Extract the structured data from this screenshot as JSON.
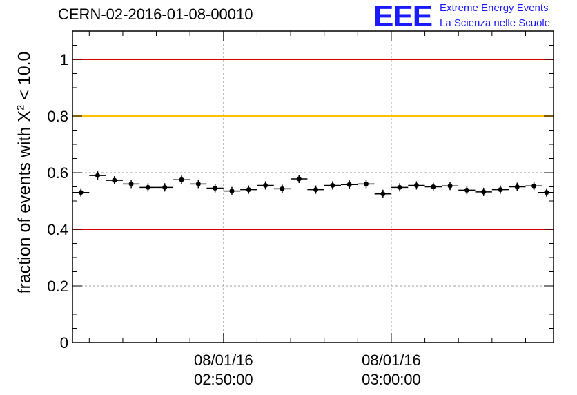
{
  "header": {
    "title": "CERN-02-2016-01-08-00010",
    "logo_text": "EEE",
    "logo_line1": "Extreme Energy Events",
    "logo_line2": "La Scienza nelle Scuole"
  },
  "colors": {
    "logo": "#1a1aff",
    "red_line": "#e00000",
    "orange_line": "#ffc000",
    "grid": "#a0a0a0",
    "marker": "#000000"
  },
  "chart_data": {
    "type": "scatter",
    "title": "CERN-02-2016-01-08-00010",
    "ylabel_prefix": "fraction of events with X",
    "ylabel_sup": "2",
    "ylabel_suffix": " < 10.0",
    "ylim": [
      0,
      1.1
    ],
    "yticks": [
      0,
      0.2,
      0.4,
      0.6,
      0.8,
      1
    ],
    "ytick_labels": [
      "0",
      "0.2",
      "0.4",
      "0.6",
      "0.8",
      "1"
    ],
    "xlim": [
      "02:41:00",
      "03:09:40"
    ],
    "xticks": [
      {
        "date": "08/01/16",
        "time": "02:50:00"
      },
      {
        "date": "08/01/16",
        "time": "03:00:00"
      }
    ],
    "grid": true,
    "hlines": [
      {
        "y": 1.0,
        "color": "red"
      },
      {
        "y": 0.8,
        "color": "orange"
      },
      {
        "y": 0.4,
        "color": "red"
      }
    ],
    "points": [
      {
        "x": "02:41:30",
        "y": 0.53
      },
      {
        "x": "02:42:30",
        "y": 0.59
      },
      {
        "x": "02:43:30",
        "y": 0.573
      },
      {
        "x": "02:44:30",
        "y": 0.56
      },
      {
        "x": "02:45:30",
        "y": 0.548
      },
      {
        "x": "02:46:30",
        "y": 0.548
      },
      {
        "x": "02:47:30",
        "y": 0.575
      },
      {
        "x": "02:48:30",
        "y": 0.56
      },
      {
        "x": "02:49:30",
        "y": 0.545
      },
      {
        "x": "02:50:30",
        "y": 0.535
      },
      {
        "x": "02:51:30",
        "y": 0.54
      },
      {
        "x": "02:52:30",
        "y": 0.555
      },
      {
        "x": "02:53:30",
        "y": 0.543
      },
      {
        "x": "02:54:30",
        "y": 0.578
      },
      {
        "x": "02:55:30",
        "y": 0.54
      },
      {
        "x": "02:56:30",
        "y": 0.555
      },
      {
        "x": "02:57:30",
        "y": 0.558
      },
      {
        "x": "02:58:30",
        "y": 0.56
      },
      {
        "x": "02:59:30",
        "y": 0.525
      },
      {
        "x": "03:00:30",
        "y": 0.548
      },
      {
        "x": "03:01:30",
        "y": 0.555
      },
      {
        "x": "03:02:30",
        "y": 0.55
      },
      {
        "x": "03:03:30",
        "y": 0.553
      },
      {
        "x": "03:04:30",
        "y": 0.538
      },
      {
        "x": "03:05:30",
        "y": 0.532
      },
      {
        "x": "03:06:30",
        "y": 0.54
      },
      {
        "x": "03:07:30",
        "y": 0.55
      },
      {
        "x": "03:08:30",
        "y": 0.553
      },
      {
        "x": "03:09:15",
        "y": 0.53
      }
    ]
  }
}
